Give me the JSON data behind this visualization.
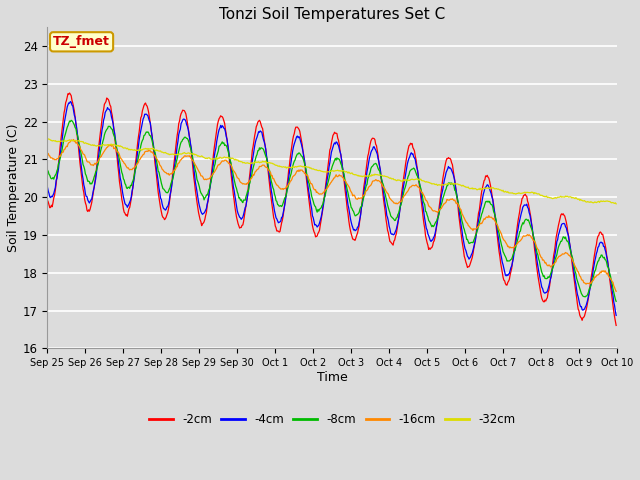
{
  "title": "Tonzi Soil Temperatures Set C",
  "xlabel": "Time",
  "ylabel": "Soil Temperature (C)",
  "ylim": [
    16.0,
    24.5
  ],
  "yticks": [
    16.0,
    17.0,
    18.0,
    19.0,
    20.0,
    21.0,
    22.0,
    23.0,
    24.0
  ],
  "bg_color": "#dcdcdc",
  "series": [
    {
      "label": "-2cm",
      "color": "#ff0000"
    },
    {
      "label": "-4cm",
      "color": "#0000ff"
    },
    {
      "label": "-8cm",
      "color": "#00bb00"
    },
    {
      "label": "-16cm",
      "color": "#ff8800"
    },
    {
      "label": "-32cm",
      "color": "#dddd00"
    }
  ],
  "annotation_text": "TZ_fmet",
  "annotation_color": "#cc0000",
  "annotation_bg": "#ffffcc",
  "annotation_border": "#cc9900",
  "xtick_labels": [
    "Sep 25",
    "Sep 26",
    "Sep 27",
    "Sep 28",
    "Sep 29",
    "Sep 30",
    "Oct 1",
    "Oct 2",
    "Oct 3",
    "Oct 4",
    "Oct 5",
    "Oct 6",
    "Oct 7",
    "Oct 8",
    "Oct 9",
    "Oct 10"
  ],
  "n_per_day": 48,
  "n_days": 15
}
